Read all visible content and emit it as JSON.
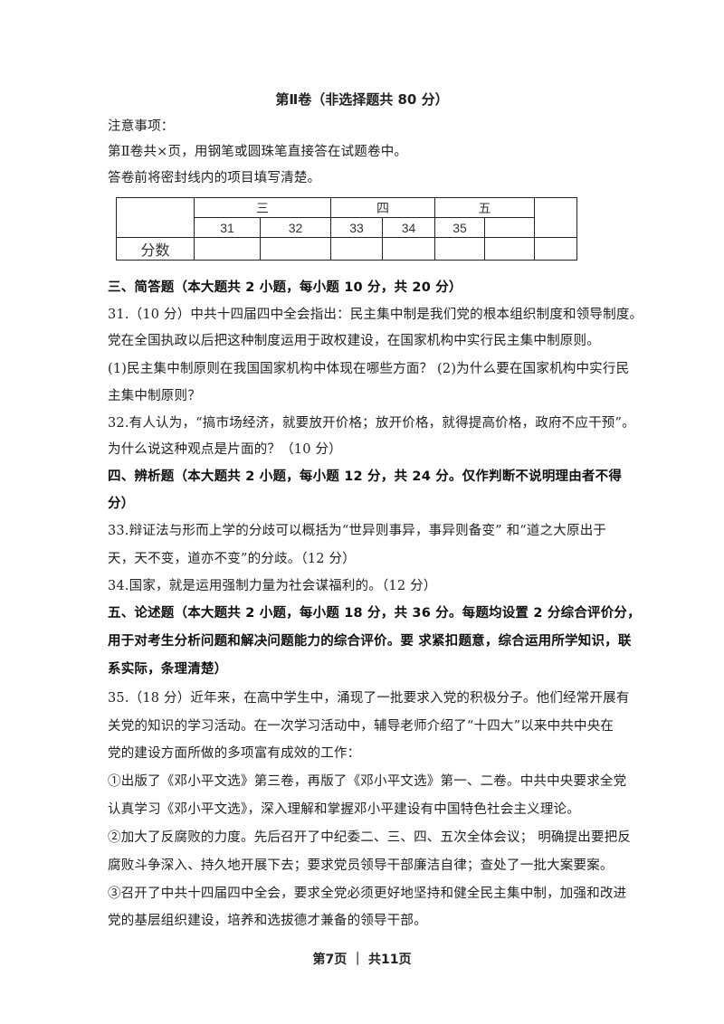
{
  "title": "第Ⅱ卷（非选择题共 80 分）",
  "notes": [
    "注意事项：",
    "第Ⅱ卷共×页，用钢笔或圆珠笔直接答在试题卷中。",
    "答卷前将密封线内的项目填写清楚。"
  ],
  "score_table": {
    "sections": [
      "三",
      "四",
      "五"
    ],
    "questions": [
      "31",
      "32",
      "33",
      "34",
      "35",
      ""
    ],
    "row_label": "分数"
  },
  "lines": [
    {
      "text": "三、简答题（本大题共 2 小题，每小题 10 分，共 20 分）",
      "bold": true
    },
    {
      "text": "31.（10 分）中共十四届四中全会指出：民主集中制是我们党的根本组织制度和领导制度。",
      "bold": false
    },
    {
      "text": "党在全国执政以后把这种制度运用于政权建设，在国家机构中实行民主集中制原则。",
      "bold": false
    },
    {
      "text": "(1)民主集中制原则在我国国家机构中体现在哪些方面？ (2)为什么要在国家机构中实行民",
      "bold": false
    },
    {
      "text": "主集中制原则？",
      "bold": false
    },
    {
      "text": "32.有人认为，“搞市场经济，就要放开价格；放开价格，就得提高价格，政府不应干预”。",
      "bold": false
    },
    {
      "text": "为什么说这种观点是片面的？（10 分）",
      "bold": false
    },
    {
      "text": "四、辨析题（本大题共 2 小题，每小题 12 分，共 24 分。仅作判断不说明理由者不得",
      "bold": true
    },
    {
      "text": "分）",
      "bold": true
    },
    {
      "text": "33.辩证法与形而上学的分歧可以概括为“世异则事异，事异则备变” 和“道之大原出于",
      "bold": false
    },
    {
      "text": "天，天不变，道亦不变”的分歧。（12 分）",
      "bold": false
    },
    {
      "text": "34.国家，就是运用强制力量为社会谋福利的。（12 分）",
      "bold": false
    },
    {
      "text": "五、论述题（本大题共 2 小题，每小题 18 分，共 36 分。每题均设置 2 分综合评价分，",
      "bold": true
    },
    {
      "text": "用于对考生分析问题和解决问题能力的综合评价。要 求紧扣题意，综合运用所学知识，联",
      "bold": true
    },
    {
      "text": "系实际，条理清楚）",
      "bold": true
    },
    {
      "text": "35.（18 分）近年来，在高中学生中，涌现了一批要求入党的积极分子。他们经常开展有",
      "bold": false
    },
    {
      "text": "关党的知识的学习活动。在一次学习活动中，辅导老师介绍了“十四大”以来中共中央在",
      "bold": false
    },
    {
      "text": "党的建设方面所做的多项富有成效的工作：",
      "bold": false
    },
    {
      "text": "①出版了《邓小平文选》第三卷，再版了《邓小平文选》第一、二卷。中共中央要求全党",
      "bold": false
    },
    {
      "text": "认真学习《邓小平文选》，深入理解和掌握邓小平建设有中国特色社会主义理论。",
      "bold": false
    },
    {
      "text": "②加大了反腐败的力度。先后召开了中纪委二、三、四、五次全体会议； 明确提出要把反",
      "bold": false
    },
    {
      "text": "腐败斗争深入、持久地开展下去；要求党员领导干部廉洁自律；查处了一批大案要案。",
      "bold": false
    },
    {
      "text": "③召开了中共十四届四中全会，要求全党必须更好地坚持和健全民主集中制，加强和改进",
      "bold": false
    },
    {
      "text": "党的基层组织建设，培养和选拔德才兼备的领导干部。",
      "bold": false
    }
  ],
  "footer": "第7页 ｜ 共11页"
}
